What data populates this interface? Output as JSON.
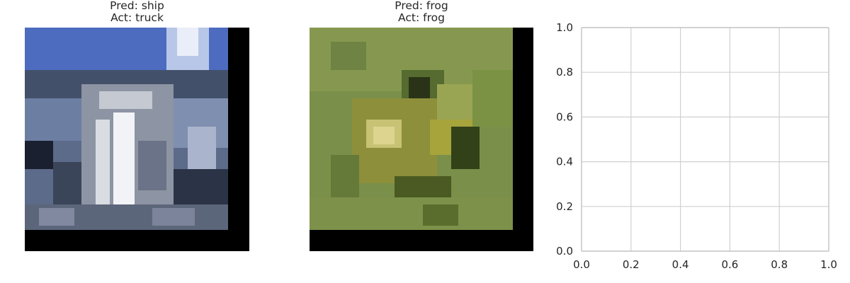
{
  "figure": {
    "panels": [
      {
        "kind": "image",
        "title_line1": "Pred: ship",
        "title_line2": "Act: truck",
        "depicts": "truck image (pixelated)"
      },
      {
        "kind": "image",
        "title_line1": "Pred: frog",
        "title_line2": "Act: frog",
        "depicts": "frog image (pixelated)"
      }
    ]
  },
  "chart_data": {
    "type": "scatter",
    "title": "",
    "xlabel": "",
    "ylabel": "",
    "xlim": [
      0.0,
      1.0
    ],
    "ylim": [
      0.0,
      1.0
    ],
    "x_ticks": [
      "0.0",
      "0.2",
      "0.4",
      "0.6",
      "0.8",
      "1.0"
    ],
    "y_ticks": [
      "0.0",
      "0.2",
      "0.4",
      "0.6",
      "0.8",
      "1.0"
    ],
    "grid": true,
    "series": [],
    "colors": {
      "grid": "#d0d0d0",
      "spine": "#c8c8c8",
      "tick_text": "#262626"
    }
  }
}
